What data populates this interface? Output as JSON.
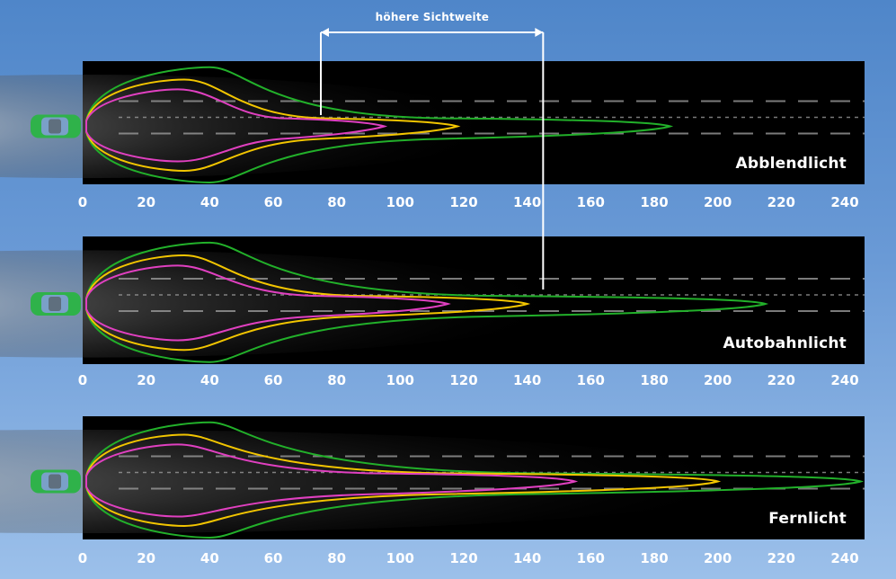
{
  "header": {
    "range_label": "höhere Sichtweite"
  },
  "panels": [
    {
      "label": "Abblendlicht",
      "reach": {
        "magenta": 95,
        "yellow": 118,
        "green": 185
      }
    },
    {
      "label": "Autobahnlicht",
      "reach": {
        "magenta": 115,
        "yellow": 140,
        "green": 215
      }
    },
    {
      "label": "Fernlicht",
      "reach": {
        "magenta": 155,
        "yellow": 200,
        "green": 245
      }
    }
  ],
  "axis": {
    "ticks": [
      "0",
      "20",
      "40",
      "60",
      "80",
      "100",
      "120",
      "140",
      "160",
      "180",
      "200",
      "220",
      "240"
    ]
  },
  "range_bracket": {
    "from": 75,
    "to": 145
  },
  "colors": {
    "magenta": "#e040c0",
    "yellow": "#f2c500",
    "green": "#22b02a",
    "car_body": "#2fb24a",
    "car_glass": "#7aa0c8"
  },
  "icons": [
    "car-icon",
    "car-icon",
    "car-icon"
  ]
}
